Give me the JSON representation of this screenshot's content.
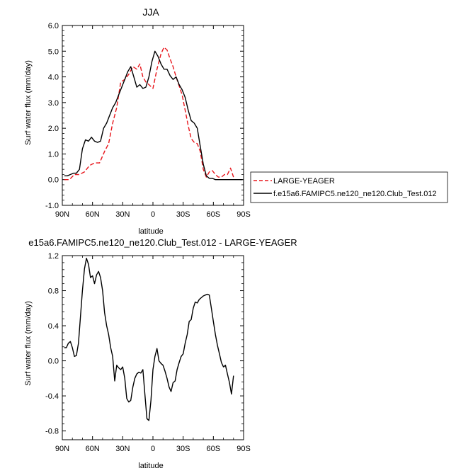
{
  "chart_data": [
    {
      "type": "line",
      "title": "JJA",
      "xlabel": "latitude",
      "ylabel": "Surf water flux (mm/day)",
      "xlim": [
        90,
        -90
      ],
      "ylim": [
        -1.0,
        6.0
      ],
      "xtick_labels": [
        "90N",
        "60N",
        "30N",
        "0",
        "30S",
        "60S",
        "90S"
      ],
      "xtick_values": [
        90,
        60,
        30,
        0,
        -30,
        -60,
        -90
      ],
      "ytick_labels": [
        "-1.0",
        "0.0",
        "1.0",
        "2.0",
        "3.0",
        "4.0",
        "5.0",
        "6.0"
      ],
      "ytick_values": [
        -1,
        0,
        1,
        2,
        3,
        4,
        5,
        6
      ],
      "legend_position": "right",
      "series": [
        {
          "name": "LARGE-YEAGER",
          "color": "#e8161c",
          "dash": "dashed",
          "x": [
            88,
            83,
            78,
            73,
            68,
            63,
            58,
            53,
            48,
            44,
            40,
            36,
            32,
            28,
            24,
            20,
            16,
            13,
            10,
            7,
            4,
            0,
            -4,
            -8,
            -11,
            -14,
            -17,
            -20,
            -23,
            -26,
            -29,
            -32,
            -35,
            -38,
            -41,
            -44,
            -47,
            -50,
            -53,
            -56,
            -59,
            -62,
            -65,
            -68,
            -71,
            -74,
            -77,
            -80
          ],
          "y": [
            0.0,
            0.0,
            0.2,
            0.2,
            0.3,
            0.55,
            0.65,
            0.65,
            1.1,
            1.4,
            2.2,
            2.8,
            3.8,
            3.9,
            4.1,
            4.4,
            4.3,
            4.5,
            4.0,
            3.8,
            3.7,
            3.55,
            4.3,
            4.9,
            5.15,
            5.05,
            4.7,
            4.4,
            4.0,
            3.65,
            3.3,
            2.7,
            2.1,
            1.6,
            1.45,
            1.4,
            1.1,
            0.4,
            0.1,
            0.3,
            0.35,
            0.2,
            0.1,
            0.1,
            0.2,
            0.2,
            0.45,
            0.1
          ]
        },
        {
          "name": "f.e15a6.FAMIPC5.ne120_ne120.Club_Test.012",
          "color": "#000000",
          "dash": "solid",
          "x": [
            88,
            85,
            82,
            79,
            76,
            73,
            70,
            67,
            64,
            61,
            58,
            55,
            52,
            49,
            46,
            43,
            40,
            37,
            34,
            31,
            28,
            25,
            22,
            19,
            16,
            13,
            10,
            7,
            4,
            1,
            -2,
            -5,
            -8,
            -11,
            -14,
            -17,
            -20,
            -23,
            -26,
            -29,
            -32,
            -35,
            -38,
            -41,
            -44,
            -47,
            -50,
            -53,
            -56,
            -59,
            -62,
            -65,
            -68,
            -71,
            -74,
            -77,
            -80,
            -83,
            -86,
            -89
          ],
          "y": [
            0.15,
            0.15,
            0.2,
            0.25,
            0.25,
            0.4,
            1.2,
            1.55,
            1.5,
            1.65,
            1.5,
            1.45,
            1.5,
            2.0,
            2.2,
            2.5,
            2.8,
            3.0,
            3.3,
            3.6,
            3.9,
            4.2,
            4.4,
            4.0,
            3.6,
            3.7,
            3.55,
            3.6,
            4.0,
            4.6,
            5.0,
            4.8,
            4.5,
            4.3,
            4.3,
            4.05,
            3.9,
            4.0,
            3.7,
            3.5,
            3.2,
            2.7,
            2.3,
            2.2,
            2.0,
            1.3,
            0.6,
            0.15,
            0.05,
            0.05,
            0.0,
            0.0,
            0.0,
            0.0,
            0.0,
            0.0,
            0.0,
            0.0,
            0.0,
            0.0
          ]
        }
      ]
    },
    {
      "type": "line",
      "title": "e15a6.FAMIPC5.ne120_ne120.Club_Test.012 - LARGE-YEAGER",
      "xlabel": "latitude",
      "ylabel": "Surf water flux (mm/day)",
      "xlim": [
        90,
        -90
      ],
      "ylim": [
        -0.9,
        1.2
      ],
      "xtick_labels": [
        "90N",
        "60N",
        "30N",
        "0",
        "30S",
        "60S",
        "90S"
      ],
      "xtick_values": [
        90,
        60,
        30,
        0,
        -30,
        -60,
        -90
      ],
      "ytick_labels": [
        "-0.8",
        "-0.4",
        "0.0",
        "0.4",
        "0.8",
        "1.2"
      ],
      "ytick_values": [
        -0.8,
        -0.4,
        0.0,
        0.4,
        0.8,
        1.2
      ],
      "series": [
        {
          "name": "",
          "color": "#000000",
          "dash": "solid",
          "x": [
            88,
            86,
            84,
            82,
            80,
            78,
            76,
            74,
            72,
            70,
            68,
            66,
            64,
            62,
            60,
            58,
            56,
            54,
            52,
            50,
            48,
            46,
            44,
            42,
            40,
            38,
            36,
            34,
            32,
            30,
            28,
            26,
            24,
            22,
            20,
            18,
            16,
            14,
            12,
            10,
            8,
            6,
            4,
            2,
            0,
            -2,
            -4,
            -6,
            -8,
            -10,
            -12,
            -14,
            -16,
            -18,
            -20,
            -22,
            -24,
            -26,
            -28,
            -30,
            -32,
            -34,
            -36,
            -38,
            -40,
            -42,
            -44,
            -46,
            -48,
            -50,
            -52,
            -54,
            -56,
            -58,
            -60,
            -62,
            -64,
            -66,
            -68,
            -70,
            -72,
            -74,
            -76,
            -78,
            -80
          ],
          "y": [
            0.15,
            0.15,
            0.2,
            0.22,
            0.15,
            0.05,
            0.06,
            0.2,
            0.5,
            0.8,
            1.05,
            1.17,
            1.1,
            0.95,
            0.97,
            0.88,
            0.98,
            1.02,
            0.95,
            0.8,
            0.55,
            0.4,
            0.3,
            0.15,
            0.05,
            -0.23,
            -0.05,
            -0.08,
            -0.1,
            -0.07,
            -0.2,
            -0.43,
            -0.47,
            -0.45,
            -0.3,
            -0.2,
            -0.15,
            -0.13,
            -0.14,
            -0.1,
            -0.38,
            -0.66,
            -0.68,
            -0.45,
            -0.1,
            0.05,
            0.14,
            0.0,
            -0.03,
            -0.05,
            -0.12,
            -0.2,
            -0.3,
            -0.35,
            -0.25,
            -0.23,
            -0.1,
            -0.02,
            0.05,
            0.08,
            0.2,
            0.3,
            0.45,
            0.47,
            0.6,
            0.67,
            0.66,
            0.7,
            0.72,
            0.74,
            0.75,
            0.76,
            0.75,
            0.6,
            0.45,
            0.3,
            0.18,
            0.08,
            -0.02,
            -0.07,
            -0.05,
            -0.15,
            -0.25,
            -0.38,
            -0.17
          ]
        }
      ]
    }
  ]
}
